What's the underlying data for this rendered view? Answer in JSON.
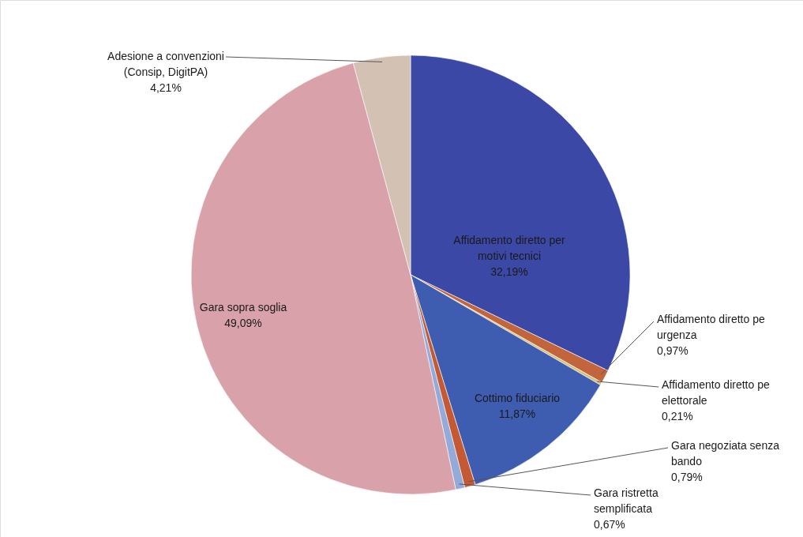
{
  "chart_data": {
    "type": "pie",
    "categories": [
      "Affidamento diretto per motivi tecnici",
      "Affidamento diretto pe urgenza",
      "Affidamento diretto pe elettorale",
      "Cottimo fiduciario",
      "Gara negoziata senza bando",
      "Gara ristretta semplificata",
      "Gara sopra soglia",
      "Adesione a convenzioni (Consip, DigitPA)"
    ],
    "values": [
      32.19,
      0.97,
      0.21,
      11.87,
      0.79,
      0.67,
      49.09,
      4.21
    ],
    "colors": [
      "#3b48a6",
      "#c2643c",
      "#d8c27a",
      "#3f5db0",
      "#c45a34",
      "#94aad8",
      "#d9a2aa",
      "#d3c2b4"
    ],
    "value_labels": [
      "32,19%",
      "0,97%",
      "0,21%",
      "11,87%",
      "0,79%",
      "0,67%",
      "49,09%",
      "4,21%"
    ]
  }
}
